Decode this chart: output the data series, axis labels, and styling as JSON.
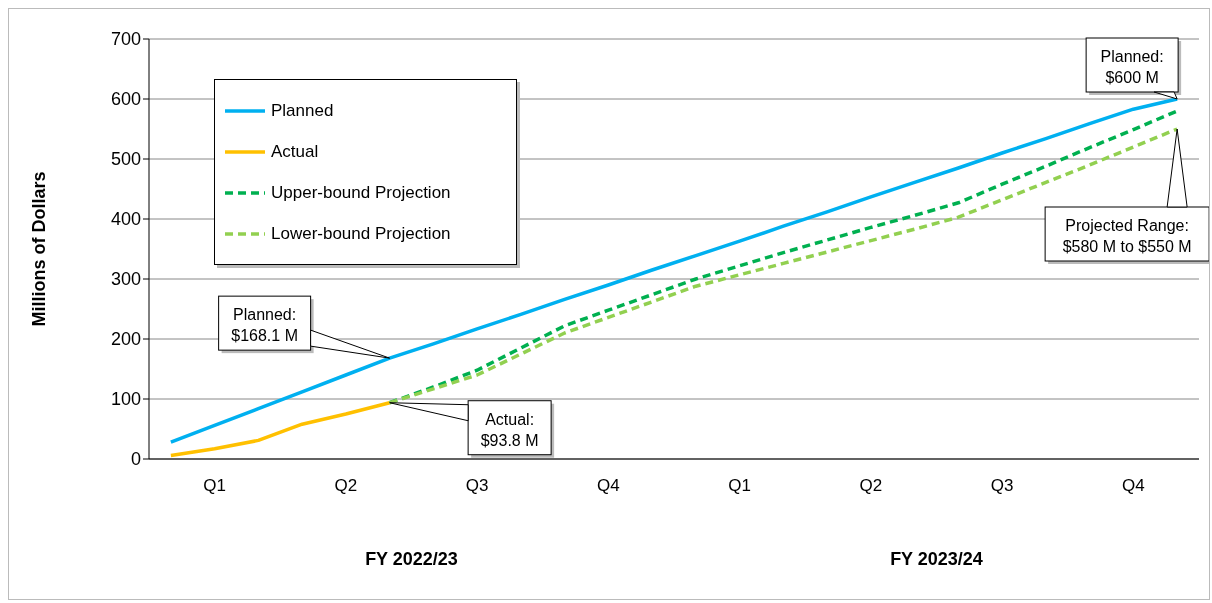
{
  "chart_data": {
    "type": "line",
    "ylabel": "Millions of Dollars",
    "categories": [
      null,
      "Q1",
      null,
      null,
      "Q2",
      null,
      null,
      "Q3",
      null,
      null,
      "Q4",
      null,
      null,
      "Q1",
      null,
      null,
      "Q2",
      null,
      null,
      "Q3",
      null,
      null,
      "Q4",
      null
    ],
    "ylim": [
      0,
      700
    ],
    "yticks": [
      0,
      100,
      200,
      300,
      400,
      500,
      600,
      700
    ],
    "grid": "y",
    "legend": "top left",
    "series": [
      {
        "name": "Planned",
        "color": "#00b0f0",
        "line_style": "solid",
        "values": [
          28,
          56,
          84,
          112,
          140,
          168.1,
          192,
          217,
          241,
          266,
          290,
          315,
          339,
          363,
          388,
          412,
          437,
          461,
          485,
          510,
          534,
          559,
          583,
          600
        ]
      },
      {
        "name": "Actual",
        "color": "#ffc000",
        "line_style": "solid",
        "values": [
          6,
          17,
          31,
          58,
          75,
          93.8,
          null,
          null,
          null,
          null,
          null,
          null,
          null,
          null,
          null,
          null,
          null,
          null,
          null,
          null,
          null,
          null,
          null,
          null
        ]
      },
      {
        "name": "Upper-bound Projection",
        "color": "#00b050",
        "line_style": "dashed",
        "values": [
          null,
          null,
          null,
          null,
          null,
          93.8,
          120,
          148,
          185,
          222,
          248,
          274,
          300,
          322,
          344,
          365,
          386,
          406,
          427,
          458,
          488,
          519,
          549,
          580
        ]
      },
      {
        "name": "Lower-bound Projection",
        "color": "#92d050",
        "line_style": "dashed",
        "values": [
          null,
          null,
          null,
          null,
          null,
          93.8,
          117,
          140,
          175,
          210,
          236,
          262,
          288,
          307,
          326,
          345,
          364,
          383,
          403,
          432,
          461,
          490,
          520,
          550
        ]
      }
    ],
    "annotations": [
      "Planned:\n$168.1 M",
      "Actual:\n$93.8 M",
      "Planned:\n$600 M",
      "Projected Range:\n$580 M to $550 M",
      "FY 2022/23",
      "FY 2023/24"
    ]
  }
}
